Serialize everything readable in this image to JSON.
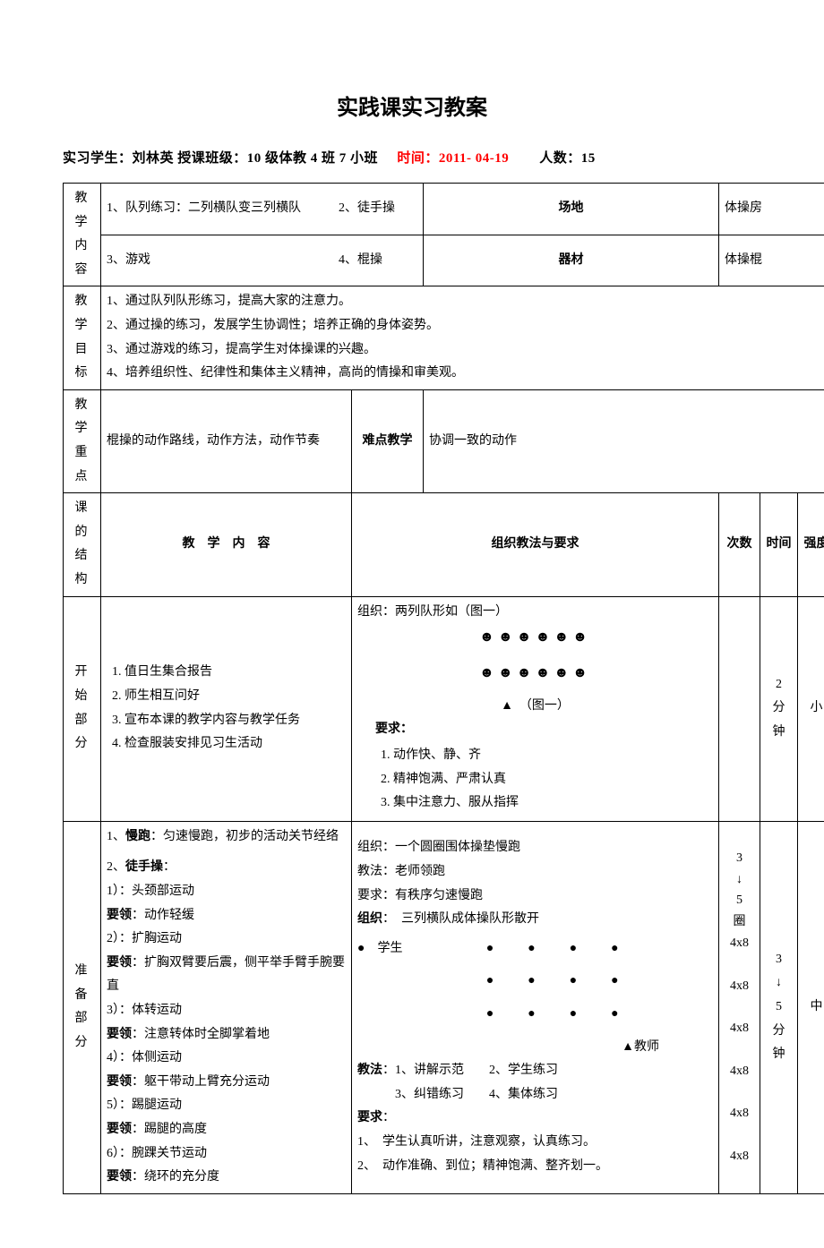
{
  "title": "实践课实习教案",
  "meta": {
    "student_label": "实习学生：",
    "student_name": "刘林英",
    "class_label": " 授课班级：",
    "class_value": "10 级体教 4 班 7 小班",
    "time_label": "时间：",
    "time_value": "2011- 04-19",
    "count_label": "人数：",
    "count_value": "15"
  },
  "row_content_label": "教学内容",
  "content_items_l1": "1、队列练习：二列横队变三列横队　　　2、徒手操",
  "content_items_l2": "3、游戏　　　　　　　　　　　　　　　4、棍操",
  "venue_label": "场地",
  "venue_value": "体操房",
  "equip_label": "器材",
  "equip_value": "体操棍",
  "goals_label": "教学目标",
  "goals": [
    "1、通过队列队形练习，提高大家的注意力。",
    "2、通过操的练习，发展学生协调性；培养正确的身体姿势。",
    "3、通过游戏的练习，提高学生对体操课的兴趣。",
    "4、培养组织性、纪律性和集体主义精神，高尚的情操和审美观。"
  ],
  "keypoint_label": "教学重点",
  "keypoint_value": "棍操的动作路线，动作方法，动作节奏",
  "difficulty_label": "难点教学",
  "difficulty_value": "协调一致的动作",
  "structure_label": "课的结构",
  "col_content_label": "教　学　内　容",
  "col_org_label": "组织教法与要求",
  "col_count_label": "次数",
  "col_time_label": "时间",
  "col_intensity_label": "强度",
  "start": {
    "label": "开始部分",
    "items": [
      "值日生集合报告",
      "师生相互问好",
      "宣布本课的教学内容与教学任务",
      "检查服装安排见习生活动"
    ],
    "org_title": "组织：两列队形如（图一）",
    "smile_row": "☻☻☻☻☻☻",
    "figure_tag": "▲　（图一）",
    "req_label": "要求：",
    "reqs": [
      "动作快、静、齐",
      "精神饱满、严肃认真",
      "集中注意力、服从指挥"
    ],
    "count": "",
    "time": "2 分 钟",
    "intensity": "小"
  },
  "prep": {
    "label": "准备部分",
    "content_lines": [
      "1、<b>慢跑</b>：匀速慢跑，初步的活动关节经络",
      "",
      "2、<b>徒手操</b>：",
      "1）：头颈部运动",
      "<b>要领</b>：动作轻缓",
      "2）：扩胸运动",
      "<b>要领</b>：扩胸双臂要后震，侧平举手臂手腕要直",
      "3）：体转运动",
      "<b>要领</b>：注意转体时全脚掌着地",
      "4）：体侧运动",
      "<b>要领</b>：躯干带动上臂充分运动",
      "5）：踢腿运动",
      "<b>要领</b>：踢腿的高度",
      "6）：腕踝关节运动",
      "<b>要领</b>：绕环的充分度"
    ],
    "org_lines": [
      "组织：一个圆圈围体操垫慢跑",
      "教法：老师领跑",
      "要求：有秩序匀速慢跑",
      "<b>组织</b>：　三列横队成体操队形散开"
    ],
    "diagram_student": "●　学生",
    "diagram_rows": [
      "●　●　●　●",
      "●　●　●　●",
      "●　●　●　●"
    ],
    "diagram_teacher": "▲教师",
    "teach_methods_l1": "<b>教法</b>：1、讲解示范　　2、学生练习",
    "teach_methods_l2": "　　　3、纠错练习　　4、集体练习",
    "req_label": "<b>要求</b>：",
    "reqs": [
      "1、　学生认真听讲，注意观察，认真练习。",
      "2、　动作准确、到位；精神饱满、整齐划一。"
    ],
    "counts": [
      "3",
      "↓",
      "5",
      "圈",
      "4x8",
      "",
      "4x8",
      "",
      "4x8",
      "",
      "4x8",
      "",
      "4x8",
      "",
      "4x8"
    ],
    "time": "3 ↓ 5 分 钟",
    "intensity": "中"
  }
}
